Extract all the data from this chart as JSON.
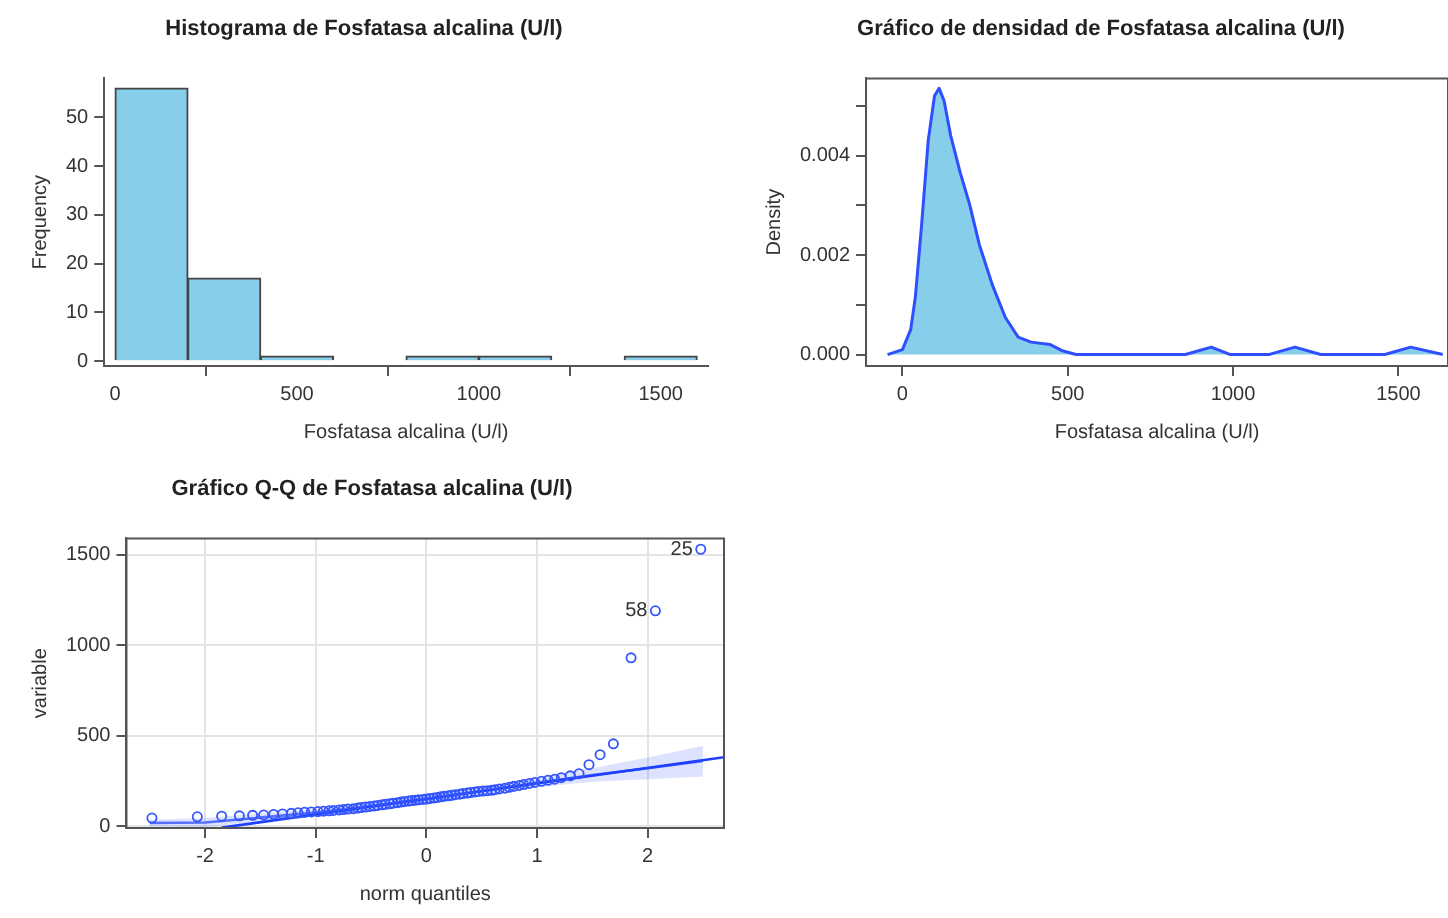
{
  "chart_data": [
    {
      "type": "histogram",
      "title": "Histograma de Fosfatasa alcalina (U/l)",
      "xlabel": "Fosfatasa alcalina (U/l)",
      "ylabel": "Frequency",
      "color": "#87ceeb",
      "bins": [
        0,
        200,
        400,
        600,
        800,
        1000,
        1200,
        1400,
        1600
      ],
      "values": [
        56,
        17,
        1,
        0,
        1,
        1,
        0,
        1
      ],
      "xlim": [
        -30,
        1630
      ],
      "xticks": [
        0,
        500,
        1000,
        1500
      ],
      "ylim": [
        -1,
        58
      ],
      "yticks": [
        0,
        10,
        20,
        30,
        40,
        50
      ],
      "grid": false,
      "legend": false
    },
    {
      "type": "area",
      "title": "Gráfico de densidad de Fosfatasa alcalina (U/l)",
      "xlabel": "Fosfatasa alcalina (U/l)",
      "ylabel": "Density",
      "color": "#87ceeb",
      "x": [
        -45,
        0,
        25,
        39,
        58,
        78,
        97,
        111,
        126,
        146,
        175,
        204,
        233,
        272,
        311,
        350,
        389,
        447,
        486,
        525,
        856,
        934,
        992,
        1109,
        1187,
        1265,
        1459,
        1537,
        1634
      ],
      "series": [
        {
          "color": "#2f4fff",
          "values": [
            0,
            0.0001,
            0.0005,
            0.00115,
            0.0026,
            0.0043,
            0.0052,
            0.00535,
            0.0051,
            0.0044,
            0.00365,
            0.003,
            0.0022,
            0.0014,
            0.00075,
            0.00035,
            0.00025,
            0.0002,
            7e-05,
            0,
            0,
            0.00015,
            0,
            0,
            0.00015,
            0,
            0,
            0.00015,
            0
          ]
        }
      ],
      "xlim": [
        -110,
        1650
      ],
      "xticks": [
        0,
        500,
        1000,
        1500
      ],
      "ylim": [
        -0.00023,
        0.00555
      ],
      "yticks": [
        {
          "value": 0,
          "label": "0.000"
        },
        {
          "value": 0.001,
          "label": null
        },
        {
          "value": 0.002,
          "label": "0.002"
        },
        {
          "value": 0.003,
          "label": null
        },
        {
          "value": 0.004,
          "label": "0.004"
        },
        {
          "value": 0.005,
          "label": null
        }
      ],
      "grid": false,
      "legend": false
    },
    {
      "type": "scatter",
      "title": "Gráfico Q-Q de Fosfatasa alcalina (U/l)",
      "xlabel": "norm quantiles",
      "ylabel": "variable",
      "grid": true,
      "legend": false,
      "xlim": [
        -2.71,
        2.69
      ],
      "xticks": [
        -2,
        -1,
        0,
        1,
        2
      ],
      "ylim": [
        -10,
        1590
      ],
      "yticks": [
        0,
        500,
        1000,
        1500
      ],
      "series": [
        {
          "type": "scatter",
          "marker": "circle",
          "color": "#3355ff",
          "x": [
            -2.48,
            -2.07,
            -1.85,
            -1.69,
            -1.57,
            -1.47,
            -1.38,
            -1.3,
            -1.22,
            -1.16,
            -1.1,
            -1.04,
            -0.98,
            -0.93,
            -0.88,
            -0.84,
            -0.79,
            -0.75,
            -0.71,
            -0.66,
            -0.62,
            -0.59,
            -0.55,
            -0.51,
            -0.47,
            -0.44,
            -0.4,
            -0.37,
            -0.33,
            -0.3,
            -0.26,
            -0.23,
            -0.2,
            -0.16,
            -0.13,
            -0.1,
            -0.07,
            -0.03,
            0,
            0.03,
            0.07,
            0.1,
            0.13,
            0.16,
            0.2,
            0.23,
            0.26,
            0.3,
            0.33,
            0.37,
            0.4,
            0.44,
            0.47,
            0.51,
            0.55,
            0.59,
            0.62,
            0.66,
            0.71,
            0.75,
            0.79,
            0.84,
            0.88,
            0.93,
            0.98,
            1.04,
            1.1,
            1.16,
            1.22,
            1.3,
            1.38,
            1.47,
            1.57,
            1.69,
            1.85,
            2.07,
            2.48
          ],
          "values": [
            45,
            52,
            55,
            57,
            60,
            62,
            65,
            68,
            71,
            74,
            77,
            79,
            81,
            83,
            85,
            87,
            90,
            92,
            95,
            97,
            100,
            103,
            106,
            109,
            112,
            115,
            118,
            121,
            124,
            127,
            130,
            133,
            136,
            139,
            142,
            144,
            146,
            148,
            150,
            153,
            156,
            159,
            162,
            165,
            168,
            171,
            174,
            177,
            180,
            183,
            186,
            189,
            192,
            194,
            196,
            198,
            202,
            206,
            210,
            215,
            220,
            225,
            230,
            236,
            242,
            248,
            254,
            260,
            268,
            278,
            290,
            340,
            395,
            455,
            930,
            1190,
            1530
          ]
        },
        {
          "type": "line",
          "color": "#1f3fff",
          "x": [
            -1.85,
            2.69
          ],
          "values": [
            -8,
            381
          ]
        },
        {
          "type": "line",
          "color": "#5570ff",
          "x": [
            -2.5,
            -2,
            -1,
            0,
            1,
            1.5,
            2,
            2.5
          ],
          "values": [
            17.5,
            20,
            75,
            150,
            240,
            282.5,
            320,
            360
          ],
          "lower": [
            0,
            -5,
            55,
            130,
            215,
            245,
            260,
            275
          ],
          "upper": [
            35,
            45,
            95,
            170,
            265,
            320,
            380,
            445
          ]
        }
      ],
      "annotations": [
        {
          "text": "25",
          "x": 2.48,
          "y": 1530
        },
        {
          "text": "58",
          "x": 2.07,
          "y": 1190
        }
      ]
    }
  ]
}
